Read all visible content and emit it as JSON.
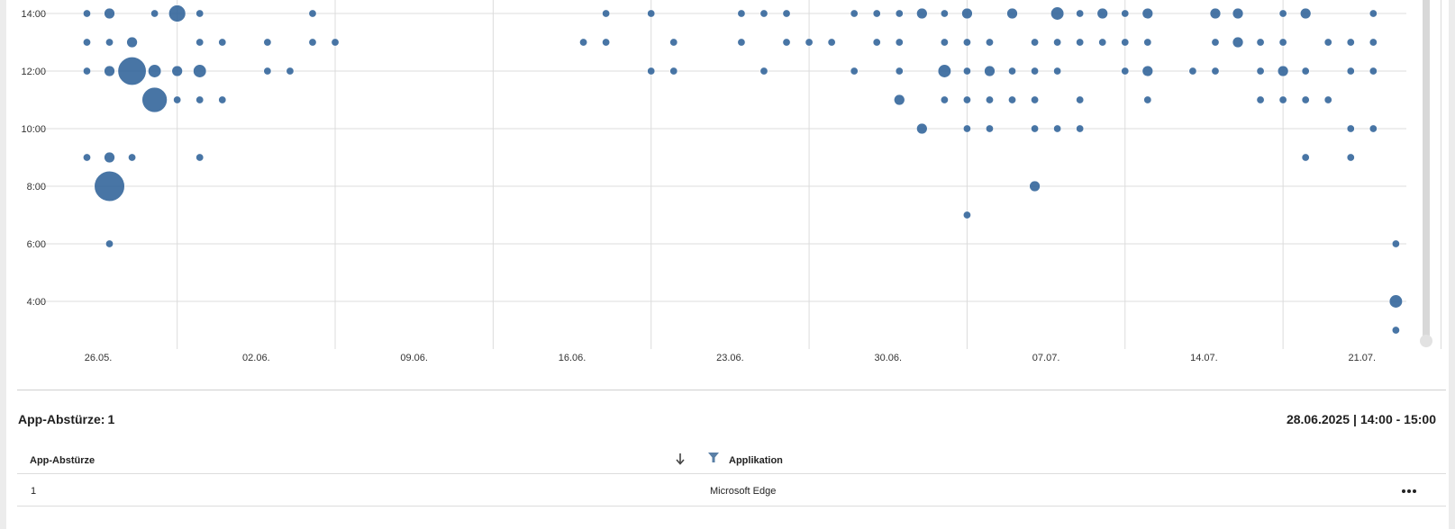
{
  "chart_data": {
    "type": "scatter",
    "x_tick_labels": [
      "26.05.",
      "02.06.",
      "09.06.",
      "16.06.",
      "23.06.",
      "30.06.",
      "07.07.",
      "14.07.",
      "21.07."
    ],
    "y_tick_labels": [
      "4:00",
      "6:00",
      "8:00",
      "10:00",
      "12:00",
      "14:00"
    ],
    "x_unit": "day (0 = 26.05.)",
    "y_unit": "hour of day",
    "xlim": [
      -1,
      59
    ],
    "ylim": [
      2.2,
      14.4
    ],
    "color": "#2f6299",
    "points": [
      {
        "x": -0.5,
        "y": 14,
        "size": 1
      },
      {
        "x": 0.5,
        "y": 14,
        "size": 2
      },
      {
        "x": 2.5,
        "y": 14,
        "size": 1
      },
      {
        "x": 3.5,
        "y": 14,
        "size": 5
      },
      {
        "x": 4.5,
        "y": 14,
        "size": 1
      },
      {
        "x": 9.5,
        "y": 14,
        "size": 1
      },
      {
        "x": 22.5,
        "y": 14,
        "size": 1
      },
      {
        "x": 24.5,
        "y": 14,
        "size": 1
      },
      {
        "x": 28.5,
        "y": 14,
        "size": 1
      },
      {
        "x": 29.5,
        "y": 14,
        "size": 1
      },
      {
        "x": 30.5,
        "y": 14,
        "size": 1
      },
      {
        "x": 33.5,
        "y": 14,
        "size": 1
      },
      {
        "x": 34.5,
        "y": 14,
        "size": 1
      },
      {
        "x": 35.5,
        "y": 14,
        "size": 1
      },
      {
        "x": 36.5,
        "y": 14,
        "size": 2
      },
      {
        "x": 37.5,
        "y": 14,
        "size": 1
      },
      {
        "x": 38.5,
        "y": 14,
        "size": 2
      },
      {
        "x": 40.5,
        "y": 14,
        "size": 2
      },
      {
        "x": 42.5,
        "y": 14,
        "size": 3
      },
      {
        "x": 43.5,
        "y": 14,
        "size": 1
      },
      {
        "x": 44.5,
        "y": 14,
        "size": 2
      },
      {
        "x": 45.5,
        "y": 14,
        "size": 1
      },
      {
        "x": 46.5,
        "y": 14,
        "size": 2
      },
      {
        "x": 49.5,
        "y": 14,
        "size": 2
      },
      {
        "x": 50.5,
        "y": 14,
        "size": 2
      },
      {
        "x": 52.5,
        "y": 14,
        "size": 1
      },
      {
        "x": 53.5,
        "y": 14,
        "size": 2
      },
      {
        "x": 56.5,
        "y": 14,
        "size": 1
      },
      {
        "x": -0.5,
        "y": 13,
        "size": 1
      },
      {
        "x": 0.5,
        "y": 13,
        "size": 1
      },
      {
        "x": 1.5,
        "y": 13,
        "size": 2
      },
      {
        "x": 4.5,
        "y": 13,
        "size": 1
      },
      {
        "x": 5.5,
        "y": 13,
        "size": 1
      },
      {
        "x": 7.5,
        "y": 13,
        "size": 1
      },
      {
        "x": 9.5,
        "y": 13,
        "size": 1
      },
      {
        "x": 10.5,
        "y": 13,
        "size": 1
      },
      {
        "x": 21.5,
        "y": 13,
        "size": 1
      },
      {
        "x": 22.5,
        "y": 13,
        "size": 1
      },
      {
        "x": 25.5,
        "y": 13,
        "size": 1
      },
      {
        "x": 28.5,
        "y": 13,
        "size": 1
      },
      {
        "x": 30.5,
        "y": 13,
        "size": 1
      },
      {
        "x": 31.5,
        "y": 13,
        "size": 1
      },
      {
        "x": 32.5,
        "y": 13,
        "size": 1
      },
      {
        "x": 34.5,
        "y": 13,
        "size": 1
      },
      {
        "x": 35.5,
        "y": 13,
        "size": 1
      },
      {
        "x": 37.5,
        "y": 13,
        "size": 1
      },
      {
        "x": 38.5,
        "y": 13,
        "size": 1
      },
      {
        "x": 39.5,
        "y": 13,
        "size": 1
      },
      {
        "x": 41.5,
        "y": 13,
        "size": 1
      },
      {
        "x": 42.5,
        "y": 13,
        "size": 1
      },
      {
        "x": 43.5,
        "y": 13,
        "size": 1
      },
      {
        "x": 44.5,
        "y": 13,
        "size": 1
      },
      {
        "x": 45.5,
        "y": 13,
        "size": 1
      },
      {
        "x": 46.5,
        "y": 13,
        "size": 1
      },
      {
        "x": 49.5,
        "y": 13,
        "size": 1
      },
      {
        "x": 50.5,
        "y": 13,
        "size": 2
      },
      {
        "x": 51.5,
        "y": 13,
        "size": 1
      },
      {
        "x": 52.5,
        "y": 13,
        "size": 1
      },
      {
        "x": 54.5,
        "y": 13,
        "size": 1
      },
      {
        "x": 55.5,
        "y": 13,
        "size": 1
      },
      {
        "x": 56.5,
        "y": 13,
        "size": 1
      },
      {
        "x": -0.5,
        "y": 12,
        "size": 1
      },
      {
        "x": 0.5,
        "y": 12,
        "size": 2
      },
      {
        "x": 1.5,
        "y": 12,
        "size": 14
      },
      {
        "x": 2.5,
        "y": 12,
        "size": 3
      },
      {
        "x": 3.5,
        "y": 12,
        "size": 2
      },
      {
        "x": 4.5,
        "y": 12,
        "size": 3
      },
      {
        "x": 7.5,
        "y": 12,
        "size": 1
      },
      {
        "x": 8.5,
        "y": 12,
        "size": 1
      },
      {
        "x": 24.5,
        "y": 12,
        "size": 1
      },
      {
        "x": 25.5,
        "y": 12,
        "size": 1
      },
      {
        "x": 29.5,
        "y": 12,
        "size": 1
      },
      {
        "x": 33.5,
        "y": 12,
        "size": 1
      },
      {
        "x": 35.5,
        "y": 12,
        "size": 1
      },
      {
        "x": 37.5,
        "y": 12,
        "size": 3
      },
      {
        "x": 38.5,
        "y": 12,
        "size": 1
      },
      {
        "x": 39.5,
        "y": 12,
        "size": 2
      },
      {
        "x": 40.5,
        "y": 12,
        "size": 1
      },
      {
        "x": 41.5,
        "y": 12,
        "size": 1
      },
      {
        "x": 42.5,
        "y": 12,
        "size": 1
      },
      {
        "x": 45.5,
        "y": 12,
        "size": 1
      },
      {
        "x": 46.5,
        "y": 12,
        "size": 2
      },
      {
        "x": 48.5,
        "y": 12,
        "size": 1
      },
      {
        "x": 49.5,
        "y": 12,
        "size": 1
      },
      {
        "x": 51.5,
        "y": 12,
        "size": 1
      },
      {
        "x": 52.5,
        "y": 12,
        "size": 2
      },
      {
        "x": 53.5,
        "y": 12,
        "size": 1
      },
      {
        "x": 55.5,
        "y": 12,
        "size": 1
      },
      {
        "x": 56.5,
        "y": 12,
        "size": 1
      },
      {
        "x": 2.5,
        "y": 11,
        "size": 11
      },
      {
        "x": 3.5,
        "y": 11,
        "size": 1
      },
      {
        "x": 4.5,
        "y": 11,
        "size": 1
      },
      {
        "x": 5.5,
        "y": 11,
        "size": 1
      },
      {
        "x": 35.5,
        "y": 11,
        "size": 2
      },
      {
        "x": 37.5,
        "y": 11,
        "size": 1
      },
      {
        "x": 38.5,
        "y": 11,
        "size": 1
      },
      {
        "x": 39.5,
        "y": 11,
        "size": 1
      },
      {
        "x": 40.5,
        "y": 11,
        "size": 1
      },
      {
        "x": 41.5,
        "y": 11,
        "size": 1
      },
      {
        "x": 43.5,
        "y": 11,
        "size": 1
      },
      {
        "x": 46.5,
        "y": 11,
        "size": 1
      },
      {
        "x": 51.5,
        "y": 11,
        "size": 1
      },
      {
        "x": 52.5,
        "y": 11,
        "size": 1
      },
      {
        "x": 53.5,
        "y": 11,
        "size": 1
      },
      {
        "x": 54.5,
        "y": 11,
        "size": 1
      },
      {
        "x": 36.5,
        "y": 10,
        "size": 2
      },
      {
        "x": 38.5,
        "y": 10,
        "size": 1
      },
      {
        "x": 39.5,
        "y": 10,
        "size": 1
      },
      {
        "x": 41.5,
        "y": 10,
        "size": 1
      },
      {
        "x": 42.5,
        "y": 10,
        "size": 1
      },
      {
        "x": 43.5,
        "y": 10,
        "size": 1
      },
      {
        "x": 55.5,
        "y": 10,
        "size": 1
      },
      {
        "x": 56.5,
        "y": 10,
        "size": 1
      },
      {
        "x": -0.5,
        "y": 9,
        "size": 1
      },
      {
        "x": 0.5,
        "y": 9,
        "size": 2
      },
      {
        "x": 1.5,
        "y": 9,
        "size": 1
      },
      {
        "x": 4.5,
        "y": 9,
        "size": 1
      },
      {
        "x": 53.5,
        "y": 9,
        "size": 1
      },
      {
        "x": 55.5,
        "y": 9,
        "size": 1
      },
      {
        "x": 0.5,
        "y": 8,
        "size": 16
      },
      {
        "x": 41.5,
        "y": 8,
        "size": 2
      },
      {
        "x": 38.5,
        "y": 7,
        "size": 1
      },
      {
        "x": 0.5,
        "y": 6,
        "size": 1
      },
      {
        "x": 57.5,
        "y": 6,
        "size": 1
      },
      {
        "x": 57.5,
        "y": 4,
        "size": 3
      },
      {
        "x": 57.5,
        "y": 3,
        "size": 1
      }
    ]
  },
  "crash_section": {
    "title": "App-Abstürze:",
    "count": "1",
    "date": "28.06.2025",
    "separator": "|",
    "time_range": "14:00 - 15:00"
  },
  "table": {
    "columns": [
      "App-Abstürze",
      "Applikation"
    ],
    "rows": [
      {
        "crashes": "1",
        "application": "Microsoft Edge"
      }
    ]
  },
  "icons": {
    "sort": "arrow-down-icon",
    "filter": "filter-icon",
    "more": "more-horizontal-icon"
  }
}
